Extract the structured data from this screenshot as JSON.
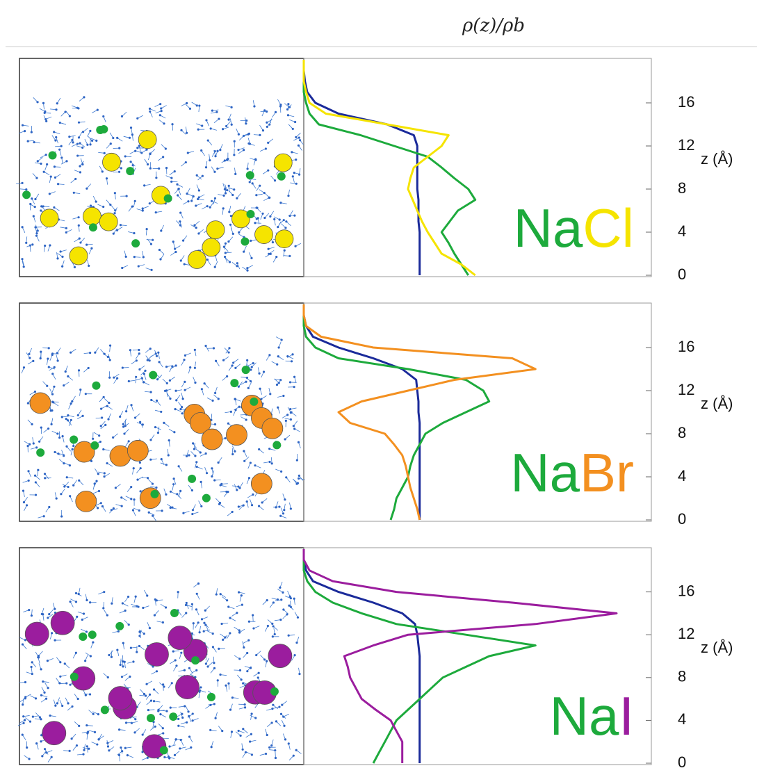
{
  "title": "ρ(z)/ρb",
  "chart_data": [
    {
      "type": "line",
      "x_label": "z (Å)",
      "x": [
        0,
        1,
        2,
        3,
        4,
        5,
        6,
        7,
        8,
        9,
        10,
        11,
        12,
        13,
        14,
        15,
        16,
        17,
        18,
        19,
        20
      ],
      "xlim": [
        0,
        20
      ],
      "xticks": [
        0,
        4,
        8,
        12,
        16
      ],
      "ylim": [
        0,
        3
      ],
      "series": [
        {
          "color": "#1a2a9a",
          "values": [
            1.0,
            1.0,
            1.0,
            1.0,
            1.0,
            0.99,
            0.99,
            0.99,
            0.98,
            0.98,
            0.98,
            0.98,
            0.98,
            0.95,
            0.72,
            0.3,
            0.1,
            0.03,
            0.01,
            0,
            0
          ]
        },
        {
          "name": "Na",
          "color": "#1daa3c",
          "values": [
            1.42,
            1.36,
            1.3,
            1.25,
            1.19,
            1.26,
            1.33,
            1.48,
            1.42,
            1.3,
            1.19,
            1.07,
            0.78,
            0.49,
            0.13,
            0.05,
            0.02,
            0,
            0,
            0,
            0
          ]
        },
        {
          "name": "Cl",
          "color": "#f5e400",
          "values": [
            1.48,
            1.36,
            1.19,
            1.13,
            1.07,
            1.02,
            0.98,
            0.94,
            0.9,
            0.92,
            0.95,
            1.07,
            1.19,
            1.25,
            0.72,
            0.19,
            0.05,
            0.02,
            0,
            0,
            0
          ]
        }
      ]
    },
    {
      "type": "line",
      "x_label": "z (Å)",
      "x": [
        0,
        1,
        2,
        3,
        4,
        5,
        6,
        7,
        8,
        9,
        10,
        11,
        12,
        13,
        14,
        15,
        16,
        17,
        18,
        19,
        20
      ],
      "xlim": [
        0,
        20
      ],
      "xticks": [
        0,
        4,
        8,
        12,
        16
      ],
      "ylim": [
        0,
        3
      ],
      "series": [
        {
          "color": "#1a2a9a",
          "values": [
            1.0,
            1.0,
            1.0,
            1.0,
            1.0,
            1.0,
            1.0,
            1.0,
            1.0,
            1.0,
            0.99,
            0.99,
            0.98,
            0.97,
            0.85,
            0.6,
            0.3,
            0.08,
            0.02,
            0,
            0
          ]
        },
        {
          "name": "Na",
          "color": "#1daa3c",
          "values": [
            0.75,
            0.78,
            0.8,
            0.85,
            0.9,
            0.92,
            0.95,
            1.0,
            1.05,
            1.2,
            1.4,
            1.6,
            1.55,
            1.4,
            0.9,
            0.3,
            0.1,
            0.02,
            0,
            0,
            0
          ]
        },
        {
          "name": "Br",
          "color": "#f39020",
          "values": [
            1.0,
            0.98,
            0.95,
            0.92,
            0.9,
            0.88,
            0.85,
            0.78,
            0.7,
            0.4,
            0.3,
            0.5,
            0.9,
            1.3,
            2.0,
            1.8,
            0.6,
            0.15,
            0.02,
            0,
            0
          ]
        }
      ]
    },
    {
      "type": "line",
      "x_label": "z (Å)",
      "x": [
        0,
        1,
        2,
        3,
        4,
        5,
        6,
        7,
        8,
        9,
        10,
        11,
        12,
        13,
        14,
        15,
        16,
        17,
        18,
        19,
        20
      ],
      "xlim": [
        0,
        20
      ],
      "xticks": [
        0,
        4,
        8,
        12,
        16
      ],
      "ylim": [
        0,
        3
      ],
      "series": [
        {
          "color": "#1a2a9a",
          "values": [
            1.0,
            1.0,
            1.0,
            1.0,
            1.0,
            1.0,
            1.0,
            1.0,
            1.0,
            1.0,
            1.0,
            0.99,
            0.98,
            0.96,
            0.85,
            0.6,
            0.3,
            0.08,
            0.02,
            0,
            0
          ]
        },
        {
          "name": "Na",
          "color": "#1daa3c",
          "values": [
            0.6,
            0.65,
            0.7,
            0.75,
            0.8,
            0.9,
            1.0,
            1.1,
            1.2,
            1.4,
            1.6,
            2.0,
            1.4,
            0.8,
            0.5,
            0.25,
            0.1,
            0.03,
            0,
            0,
            0
          ]
        },
        {
          "name": "I",
          "color": "#9b1d9e",
          "values": [
            0.85,
            0.85,
            0.85,
            0.8,
            0.75,
            0.62,
            0.5,
            0.45,
            0.4,
            0.38,
            0.35,
            0.6,
            0.9,
            2.0,
            2.7,
            1.8,
            0.8,
            0.25,
            0.05,
            0,
            0
          ]
        }
      ]
    }
  ]
}
